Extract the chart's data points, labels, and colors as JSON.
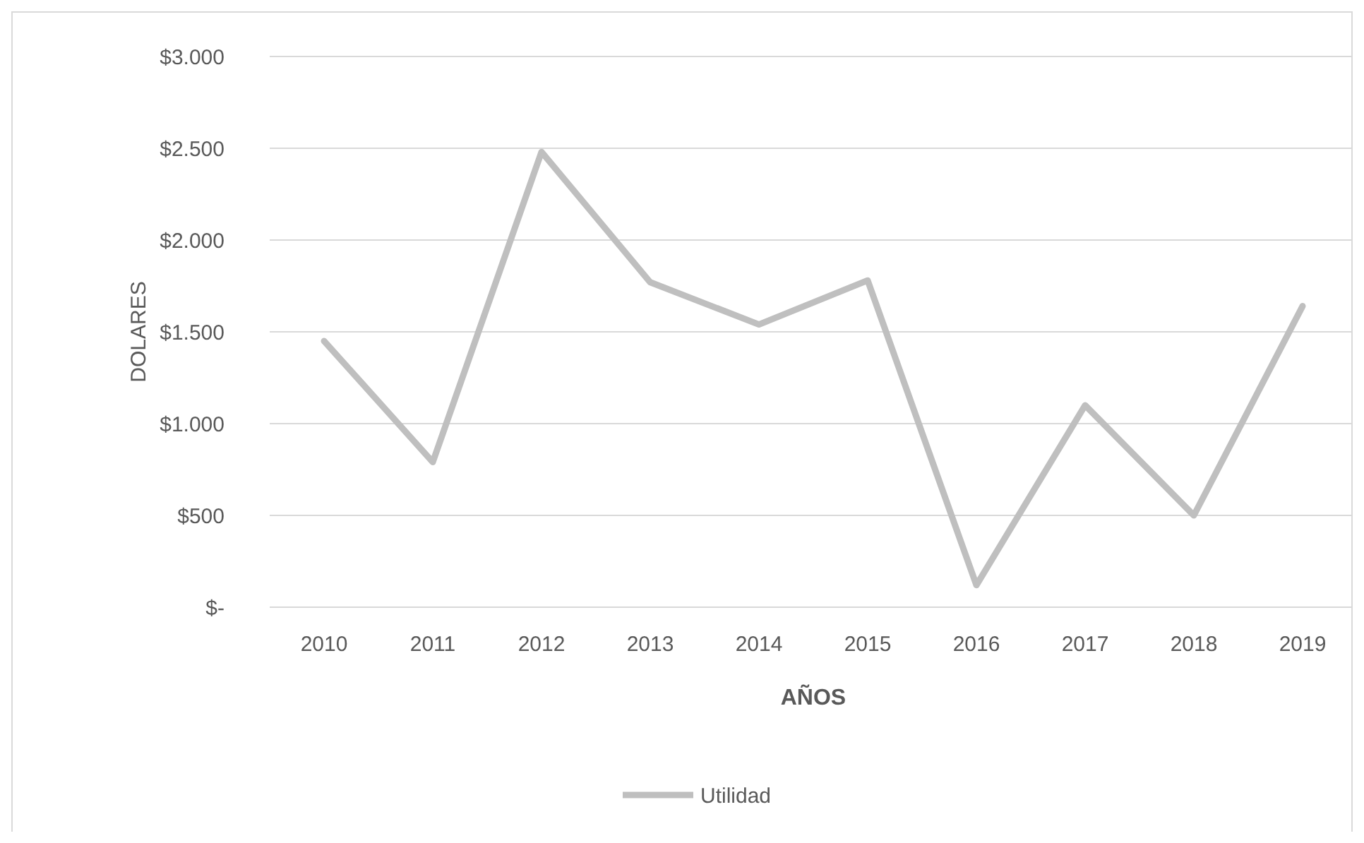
{
  "chart_data": {
    "type": "line",
    "xlabel": "AÑOS",
    "ylabel": "DOLARES",
    "categories": [
      "2010",
      "2011",
      "2012",
      "2013",
      "2014",
      "2015",
      "2016",
      "2017",
      "2018",
      "2019"
    ],
    "series": [
      {
        "name": "Utilidad",
        "color": "#bfbfbf",
        "values": [
          1450,
          790,
          2480,
          1770,
          1540,
          1780,
          120,
          1100,
          500,
          1640
        ]
      }
    ],
    "ylim": [
      0,
      3000
    ],
    "yticks": [
      {
        "value": 0,
        "label": "$-"
      },
      {
        "value": 500,
        "label": "$500"
      },
      {
        "value": 1000,
        "label": "$1.000"
      },
      {
        "value": 1500,
        "label": "$1.500"
      },
      {
        "value": 2000,
        "label": "$2.000"
      },
      {
        "value": 2500,
        "label": "$2.500"
      },
      {
        "value": 3000,
        "label": "$3.000"
      }
    ],
    "grid": "y",
    "legend": "bottom",
    "marker": "none",
    "line_style": "solid"
  }
}
